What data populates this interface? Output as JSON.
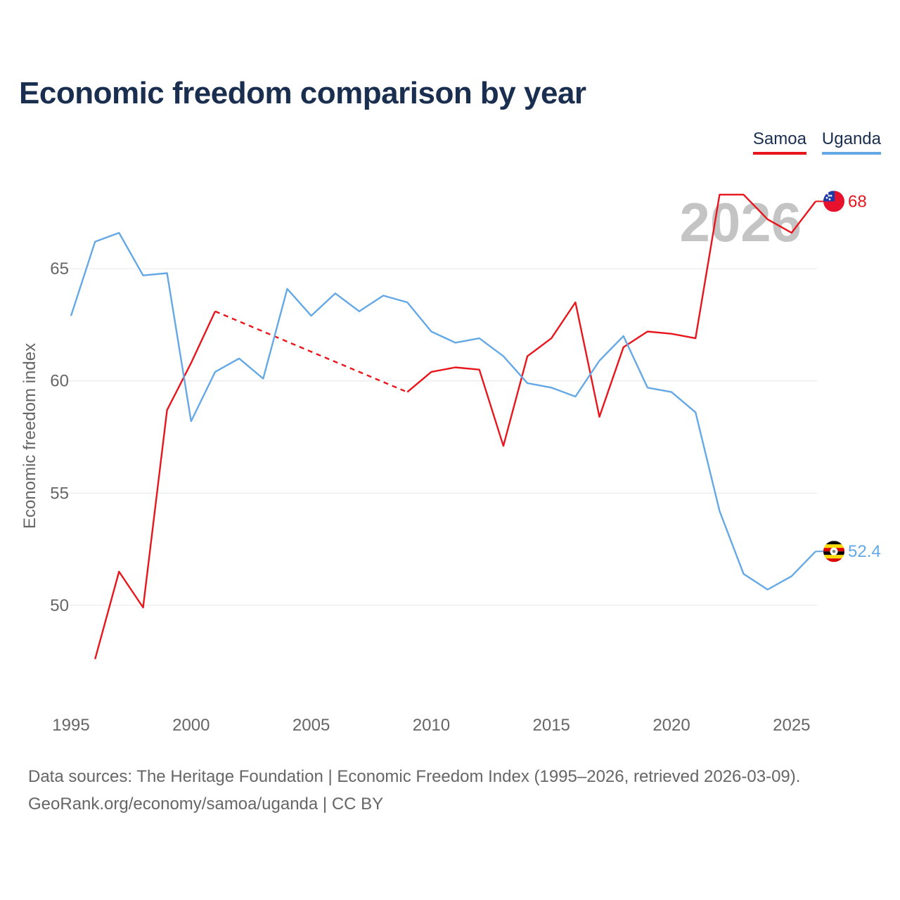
{
  "title": "Economic freedom comparison by year",
  "legend": {
    "samoa": "Samoa",
    "uganda": "Uganda"
  },
  "colors": {
    "samoa": "#e8161c",
    "uganda": "#64a8e6",
    "grid": "#e6e6e6",
    "axis_text": "#666666",
    "year_watermark": "#c4c4c4"
  },
  "year_watermark": "2026",
  "chart_data": {
    "type": "line",
    "title": "Economic freedom comparison by year",
    "xlabel": "",
    "ylabel": "Economic freedom index",
    "xlim": [
      1995,
      2026
    ],
    "ylim": [
      46,
      69.5
    ],
    "x_ticks": [
      1995,
      2000,
      2005,
      2010,
      2015,
      2020,
      2025
    ],
    "y_ticks": [
      50,
      55,
      60,
      65
    ],
    "grid": true,
    "legend_position": "top-right",
    "series": [
      {
        "name": "Samoa",
        "color": "#e8161c",
        "x": [
          1996,
          1997,
          1998,
          1999,
          2000,
          2001,
          2009,
          2010,
          2011,
          2012,
          2013,
          2014,
          2015,
          2016,
          2017,
          2018,
          2019,
          2020,
          2021,
          2022,
          2023,
          2024,
          2025,
          2026
        ],
        "y": [
          47.6,
          51.5,
          49.9,
          58.7,
          60.8,
          63.1,
          59.5,
          60.4,
          60.6,
          60.5,
          57.1,
          61.1,
          61.9,
          63.5,
          58.4,
          61.5,
          62.2,
          62.1,
          61.9,
          68.3,
          68.3,
          67.2,
          66.6,
          68.0
        ],
        "dashed_gap": [
          2001,
          2009
        ],
        "end_label": "68",
        "flag": "samoa-flag"
      },
      {
        "name": "Uganda",
        "color": "#64a8e6",
        "x": [
          1995,
          1996,
          1997,
          1998,
          1999,
          2000,
          2001,
          2002,
          2003,
          2004,
          2005,
          2006,
          2007,
          2008,
          2009,
          2010,
          2011,
          2012,
          2013,
          2014,
          2015,
          2016,
          2017,
          2018,
          2019,
          2020,
          2021,
          2022,
          2023,
          2024,
          2025,
          2026
        ],
        "y": [
          62.9,
          66.2,
          66.6,
          64.7,
          64.8,
          58.2,
          60.4,
          61.0,
          60.1,
          64.1,
          62.9,
          63.9,
          63.1,
          63.8,
          63.5,
          62.2,
          61.7,
          61.9,
          61.1,
          59.9,
          59.7,
          59.3,
          60.9,
          62.0,
          59.7,
          59.5,
          58.6,
          54.2,
          51.4,
          50.7,
          51.3,
          52.4
        ],
        "end_label": "52.4",
        "flag": "uganda-flag"
      }
    ]
  },
  "footer": {
    "line1": "Data sources: The Heritage Foundation | Economic Freedom Index (1995–2026, retrieved 2026-03-09).",
    "line2": "GeoRank.org/economy/samoa/uganda | CC BY"
  }
}
